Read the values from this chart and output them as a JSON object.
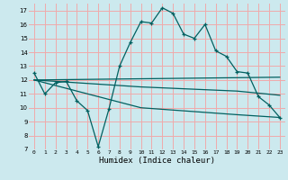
{
  "background_color": "#cce9ee",
  "grid_color": "#f0aaaa",
  "line_color": "#006060",
  "xlabel": "Humidex (Indice chaleur)",
  "ylim": [
    7,
    17.5
  ],
  "xlim": [
    -0.5,
    23.5
  ],
  "yticks": [
    7,
    8,
    9,
    10,
    11,
    12,
    13,
    14,
    15,
    16,
    17
  ],
  "xticks": [
    0,
    1,
    2,
    3,
    4,
    5,
    6,
    7,
    8,
    9,
    10,
    11,
    12,
    13,
    14,
    15,
    16,
    17,
    18,
    19,
    20,
    21,
    22,
    23
  ],
  "series_main": {
    "x": [
      0,
      1,
      2,
      3,
      4,
      5,
      6,
      7,
      8,
      9,
      10,
      11,
      12,
      13,
      14,
      15,
      16,
      17,
      18,
      19,
      20,
      21,
      22,
      23
    ],
    "y": [
      12.5,
      11.0,
      11.8,
      11.9,
      10.5,
      9.8,
      7.2,
      9.9,
      13.0,
      14.7,
      16.2,
      16.1,
      17.2,
      16.8,
      15.3,
      15.0,
      16.0,
      14.1,
      13.7,
      12.6,
      12.5,
      10.8,
      10.2,
      9.3
    ]
  },
  "series_flat": [
    {
      "x": [
        0,
        23
      ],
      "y": [
        12.0,
        12.2
      ]
    },
    {
      "x": [
        0,
        10,
        19,
        23
      ],
      "y": [
        12.0,
        11.5,
        11.2,
        10.9
      ]
    },
    {
      "x": [
        0,
        10,
        19,
        23
      ],
      "y": [
        12.0,
        10.0,
        9.5,
        9.3
      ]
    }
  ]
}
